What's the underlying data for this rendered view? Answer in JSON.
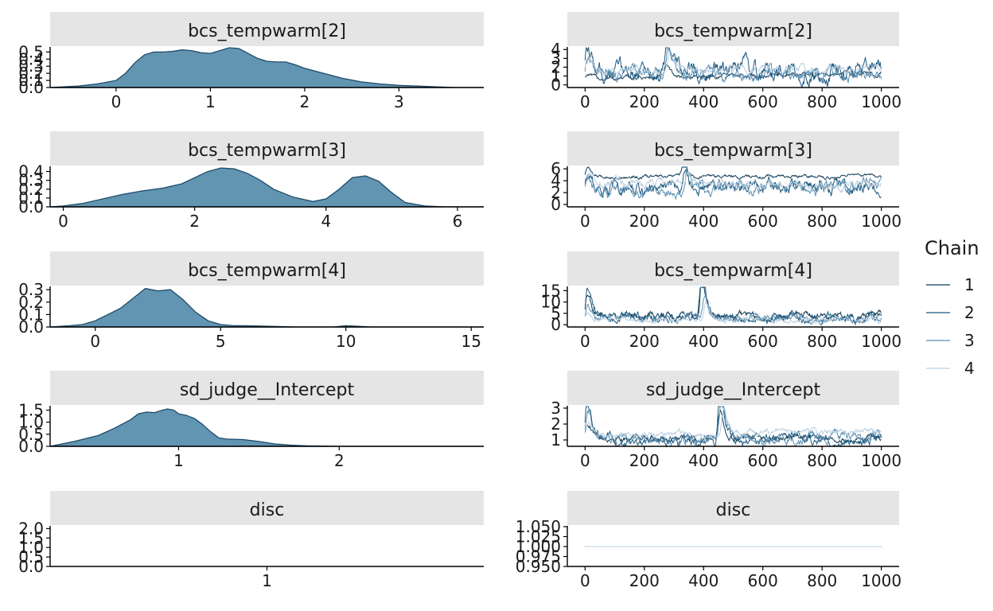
{
  "legend": {
    "title": "Chain",
    "entries": [
      {
        "label": "1",
        "color": "#0f3a57"
      },
      {
        "label": "2",
        "color": "#1f5a80"
      },
      {
        "label": "3",
        "color": "#5d8fb0"
      },
      {
        "label": "4",
        "color": "#b9cfdf"
      }
    ]
  },
  "chart_data": [
    {
      "type": "area",
      "title": "bcs_tempwarm[2]",
      "xlim": [
        -0.7,
        3.9
      ],
      "ylim": [
        0,
        0.56
      ],
      "xticks": [
        0,
        1,
        2,
        3
      ],
      "yticks": [
        0.0,
        0.1,
        0.2,
        0.3,
        0.4,
        0.5
      ],
      "x": [
        -0.7,
        -0.4,
        -0.2,
        0,
        0.1,
        0.2,
        0.3,
        0.4,
        0.5,
        0.6,
        0.7,
        0.8,
        0.9,
        1.0,
        1.1,
        1.2,
        1.3,
        1.4,
        1.5,
        1.6,
        1.7,
        1.8,
        1.9,
        2.0,
        2.2,
        2.4,
        2.6,
        2.8,
        3.0,
        3.2,
        3.4,
        3.6,
        3.9
      ],
      "y": [
        0.0,
        0.02,
        0.05,
        0.1,
        0.2,
        0.35,
        0.46,
        0.5,
        0.5,
        0.51,
        0.53,
        0.52,
        0.49,
        0.48,
        0.52,
        0.56,
        0.55,
        0.48,
        0.41,
        0.37,
        0.36,
        0.36,
        0.32,
        0.27,
        0.2,
        0.13,
        0.08,
        0.05,
        0.03,
        0.02,
        0.01,
        0.0,
        0.0
      ]
    },
    {
      "type": "line",
      "title": "bcs_tempwarm[2]",
      "xlim": [
        -60,
        1060
      ],
      "ylim": [
        -0.3,
        4.2
      ],
      "xticks": [
        0,
        200,
        400,
        600,
        800,
        1000
      ],
      "yticks": [
        0,
        1,
        2,
        3,
        4
      ],
      "trace": {
        "iterations": 1000,
        "series": [
          {
            "chain": "1",
            "level": 0.65,
            "end": 1.4,
            "noise": 0.15,
            "spike": 0.3
          },
          {
            "chain": "2",
            "level": 1.6,
            "end": 1.3,
            "noise": 0.6,
            "spike": 1.2
          },
          {
            "chain": "3",
            "level": 1.3,
            "end": 1.2,
            "noise": 0.45,
            "spike": 1.0
          },
          {
            "chain": "4",
            "level": 1.7,
            "end": 1.8,
            "noise": 0.25,
            "spike": 0.6
          }
        ]
      }
    },
    {
      "type": "area",
      "title": "bcs_tempwarm[3]",
      "xlim": [
        -0.2,
        6.4
      ],
      "ylim": [
        0,
        0.45
      ],
      "xticks": [
        0,
        2,
        4,
        6
      ],
      "yticks": [
        0.0,
        0.1,
        0.2,
        0.3,
        0.4
      ],
      "x": [
        -0.2,
        0,
        0.3,
        0.6,
        0.9,
        1.2,
        1.5,
        1.8,
        2.0,
        2.2,
        2.4,
        2.6,
        2.8,
        3.0,
        3.2,
        3.5,
        3.8,
        4.0,
        4.2,
        4.4,
        4.6,
        4.8,
        5.0,
        5.2,
        5.5,
        5.8,
        6.1,
        6.4
      ],
      "y": [
        0.0,
        0.01,
        0.04,
        0.09,
        0.14,
        0.18,
        0.21,
        0.26,
        0.33,
        0.4,
        0.44,
        0.43,
        0.38,
        0.3,
        0.2,
        0.11,
        0.06,
        0.09,
        0.2,
        0.33,
        0.35,
        0.29,
        0.16,
        0.05,
        0.01,
        0.0,
        0.0,
        0.0
      ]
    },
    {
      "type": "line",
      "title": "bcs_tempwarm[3]",
      "xlim": [
        -60,
        1060
      ],
      "ylim": [
        -0.4,
        6.3
      ],
      "xticks": [
        0,
        200,
        400,
        600,
        800,
        1000
      ],
      "yticks": [
        0,
        2,
        4,
        6
      ],
      "trace": {
        "iterations": 1000,
        "series": [
          {
            "chain": "1",
            "level": 4.6,
            "end": 4.8,
            "noise": 0.18,
            "spike": 0.8
          },
          {
            "chain": "2",
            "level": 2.7,
            "end": 2.8,
            "noise": 0.7,
            "spike": 1.2
          },
          {
            "chain": "3",
            "level": 2.2,
            "end": 3.2,
            "noise": 0.6,
            "spike": 1.0
          },
          {
            "chain": "4",
            "level": 3.6,
            "end": 3.2,
            "noise": 0.4,
            "spike": 0.6
          }
        ]
      }
    },
    {
      "type": "area",
      "title": "bcs_tempwarm[4]",
      "xlim": [
        -1.8,
        15.5
      ],
      "ylim": [
        0,
        0.32
      ],
      "xticks": [
        0,
        5,
        10,
        15
      ],
      "yticks": [
        0.0,
        0.1,
        0.2,
        0.3
      ],
      "x": [
        -1.8,
        -1,
        -0.5,
        0,
        0.5,
        1,
        1.5,
        2.0,
        2.5,
        3.0,
        3.5,
        4.0,
        4.5,
        5.0,
        5.5,
        6.0,
        7.0,
        8.0,
        9.5,
        10.0,
        10.5,
        11.0,
        12.0,
        15.5
      ],
      "y": [
        0.0,
        0.01,
        0.02,
        0.05,
        0.1,
        0.15,
        0.23,
        0.31,
        0.29,
        0.3,
        0.22,
        0.12,
        0.05,
        0.02,
        0.01,
        0.01,
        0.005,
        0.0,
        0.0,
        0.01,
        0.005,
        0.0,
        0.0,
        0.0
      ]
    },
    {
      "type": "line",
      "title": "bcs_tempwarm[4]",
      "xlim": [
        -60,
        1060
      ],
      "ylim": [
        -1,
        16.5
      ],
      "xticks": [
        0,
        200,
        400,
        600,
        800,
        1000
      ],
      "yticks": [
        0,
        5,
        10,
        15
      ],
      "trace": {
        "iterations": 1000,
        "series": [
          {
            "chain": "1",
            "level": 3.5,
            "end": 4.0,
            "noise": 1.0,
            "spike": 5.0
          },
          {
            "chain": "2",
            "level": 2.8,
            "end": 3.5,
            "noise": 1.2,
            "spike": 8.0
          },
          {
            "chain": "3",
            "level": 2.5,
            "end": 2.5,
            "noise": 0.9,
            "spike": 3.0
          },
          {
            "chain": "4",
            "level": 2.2,
            "end": 2.0,
            "noise": 0.6,
            "spike": 2.0
          }
        ]
      }
    },
    {
      "type": "area",
      "title": "sd_judge__Intercept",
      "xlim": [
        0.2,
        2.9
      ],
      "ylim": [
        0,
        1.65
      ],
      "xticks": [
        1,
        2
      ],
      "yticks": [
        0.0,
        0.5,
        1.0,
        1.5
      ],
      "x": [
        0.2,
        0.35,
        0.5,
        0.6,
        0.7,
        0.75,
        0.8,
        0.85,
        0.9,
        0.93,
        0.97,
        1.0,
        1.05,
        1.1,
        1.15,
        1.2,
        1.25,
        1.3,
        1.4,
        1.5,
        1.6,
        1.7,
        1.8,
        2.0,
        2.9
      ],
      "y": [
        0.0,
        0.2,
        0.45,
        0.75,
        1.1,
        1.35,
        1.42,
        1.4,
        1.5,
        1.55,
        1.5,
        1.35,
        1.28,
        1.15,
        0.9,
        0.6,
        0.35,
        0.3,
        0.28,
        0.2,
        0.1,
        0.05,
        0.02,
        0.0,
        0.0
      ]
    },
    {
      "type": "line",
      "title": "sd_judge__Intercept",
      "xlim": [
        -60,
        1060
      ],
      "ylim": [
        0.6,
        3.1
      ],
      "xticks": [
        0,
        200,
        400,
        600,
        800,
        1000
      ],
      "yticks": [
        1,
        2,
        3
      ],
      "trace": {
        "iterations": 1000,
        "series": [
          {
            "chain": "1",
            "level": 1.15,
            "end": 1.1,
            "noise": 0.12,
            "spike": 0.5
          },
          {
            "chain": "2",
            "level": 1.0,
            "end": 1.0,
            "noise": 0.2,
            "spike": 1.7
          },
          {
            "chain": "3",
            "level": 1.05,
            "end": 1.2,
            "noise": 0.18,
            "spike": 0.9
          },
          {
            "chain": "4",
            "level": 1.3,
            "end": 1.5,
            "noise": 0.12,
            "spike": 0.4
          }
        ]
      }
    },
    {
      "type": "area",
      "title": "disc",
      "xlim": [
        0.0,
        2.0
      ],
      "ylim": [
        0,
        2.1
      ],
      "xticks": [
        1
      ],
      "yticks": [
        0.0,
        0.5,
        1.0,
        1.5,
        2.0
      ],
      "x": [
        1,
        1
      ],
      "y": [
        0,
        0
      ]
    },
    {
      "type": "line",
      "title": "disc",
      "xlim": [
        -60,
        1060
      ],
      "ylim": [
        0.95,
        1.05
      ],
      "xticks": [
        0,
        200,
        400,
        600,
        800,
        1000
      ],
      "yticks": [
        0.95,
        0.975,
        1.0,
        1.025,
        1.05
      ],
      "trace": {
        "iterations": 1000,
        "series": [
          {
            "chain": "1",
            "level": 1.0,
            "end": 1.0,
            "noise": 0,
            "spike": 0
          },
          {
            "chain": "2",
            "level": 1.0,
            "end": 1.0,
            "noise": 0,
            "spike": 0
          },
          {
            "chain": "3",
            "level": 1.0,
            "end": 1.0,
            "noise": 0,
            "spike": 0
          },
          {
            "chain": "4",
            "level": 1.0,
            "end": 1.0,
            "noise": 0,
            "spike": 0
          }
        ]
      }
    }
  ]
}
